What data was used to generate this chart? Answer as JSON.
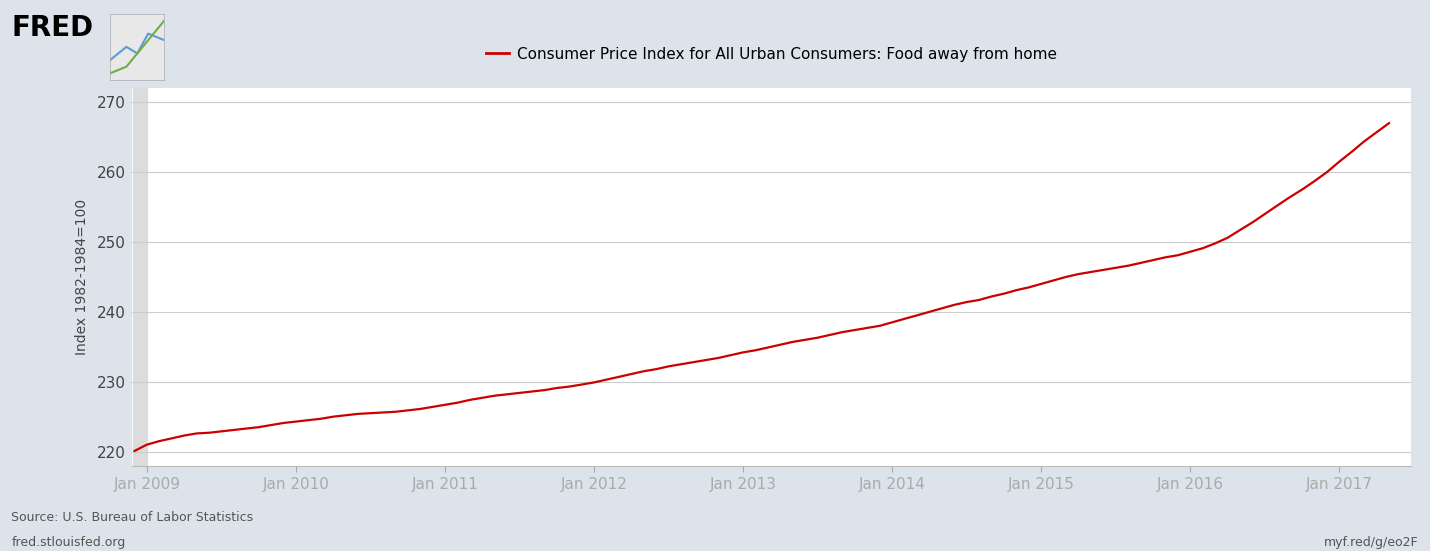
{
  "title": "Consumer Price Index for All Urban Consumers: Food away from home",
  "ylabel": "Index 1982-1984=100",
  "line_color": "#cc0000",
  "background_color": "#dce3ea",
  "plot_bg_color": "#ffffff",
  "shaded_region_color": "#dcdcdc",
  "grid_color": "#cccccc",
  "text_color": "#444444",
  "source_text": "Source: U.S. Bureau of Labor Statistics",
  "url_left": "fred.stlouisfed.org",
  "url_right": "myf.red/g/eo2F",
  "ylim": [
    218,
    272
  ],
  "yticks": [
    220,
    230,
    240,
    250,
    260,
    270
  ],
  "x_tick_labels": [
    "Jan 2009",
    "Jan 2010",
    "Jan 2011",
    "Jan 2012",
    "Jan 2013",
    "Jan 2014",
    "Jan 2015",
    "Jan 2016",
    "Jan 2017"
  ],
  "data_x": [
    2008.917,
    2009.0,
    2009.083,
    2009.167,
    2009.25,
    2009.333,
    2009.417,
    2009.5,
    2009.583,
    2009.667,
    2009.75,
    2009.833,
    2009.917,
    2010.0,
    2010.083,
    2010.167,
    2010.25,
    2010.333,
    2010.417,
    2010.5,
    2010.583,
    2010.667,
    2010.75,
    2010.833,
    2010.917,
    2011.0,
    2011.083,
    2011.167,
    2011.25,
    2011.333,
    2011.417,
    2011.5,
    2011.583,
    2011.667,
    2011.75,
    2011.833,
    2011.917,
    2012.0,
    2012.083,
    2012.167,
    2012.25,
    2012.333,
    2012.417,
    2012.5,
    2012.583,
    2012.667,
    2012.75,
    2012.833,
    2012.917,
    2013.0,
    2013.083,
    2013.167,
    2013.25,
    2013.333,
    2013.417,
    2013.5,
    2013.583,
    2013.667,
    2013.75,
    2013.833,
    2013.917,
    2014.0,
    2014.083,
    2014.167,
    2014.25,
    2014.333,
    2014.417,
    2014.5,
    2014.583,
    2014.667,
    2014.75,
    2014.833,
    2014.917,
    2015.0,
    2015.083,
    2015.167,
    2015.25,
    2015.333,
    2015.417,
    2015.5,
    2015.583,
    2015.667,
    2015.75,
    2015.833,
    2015.917,
    2016.0,
    2016.083,
    2016.167,
    2016.25,
    2016.333,
    2016.417,
    2016.5,
    2016.583,
    2016.667,
    2016.75,
    2016.833,
    2016.917,
    2017.0,
    2017.083,
    2017.167,
    2017.25,
    2017.333
  ],
  "data_y": [
    220.1,
    221.0,
    221.5,
    221.9,
    222.3,
    222.6,
    222.7,
    222.9,
    223.1,
    223.3,
    223.5,
    223.8,
    224.1,
    224.3,
    224.5,
    224.7,
    225.0,
    225.2,
    225.4,
    225.5,
    225.6,
    225.7,
    225.9,
    226.1,
    226.4,
    226.7,
    227.0,
    227.4,
    227.7,
    228.0,
    228.2,
    228.4,
    228.6,
    228.8,
    229.1,
    229.3,
    229.6,
    229.9,
    230.3,
    230.7,
    231.1,
    231.5,
    231.8,
    232.2,
    232.5,
    232.8,
    233.1,
    233.4,
    233.8,
    234.2,
    234.5,
    234.9,
    235.3,
    235.7,
    236.0,
    236.3,
    236.7,
    237.1,
    237.4,
    237.7,
    238.0,
    238.5,
    239.0,
    239.5,
    240.0,
    240.5,
    241.0,
    241.4,
    241.7,
    242.2,
    242.6,
    243.1,
    243.5,
    244.0,
    244.5,
    245.0,
    245.4,
    245.7,
    246.0,
    246.3,
    246.6,
    247.0,
    247.4,
    247.8,
    248.1,
    248.6,
    249.1,
    249.8,
    250.6,
    251.7,
    252.8,
    254.0,
    255.2,
    256.4,
    257.5,
    258.7,
    260.0,
    261.5,
    262.9,
    264.4,
    265.7,
    267.0
  ]
}
